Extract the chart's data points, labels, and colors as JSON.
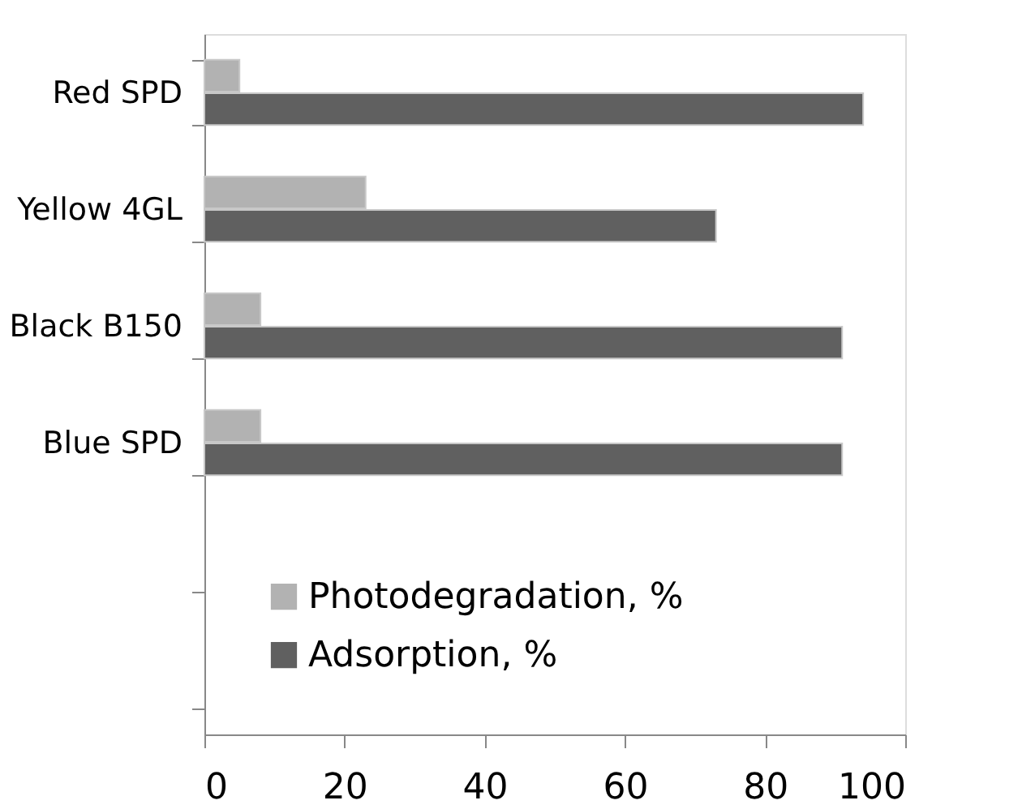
{
  "chart_data": {
    "type": "bar",
    "orientation": "horizontal",
    "categories": [
      "Red SPD",
      "Yellow 4GL",
      "Black B150",
      "Blue SPD",
      null,
      null
    ],
    "series": [
      {
        "name": "Photodegradation, %",
        "color": "#b2b2b2",
        "values": [
          5,
          23,
          8,
          8,
          null,
          null
        ]
      },
      {
        "name": "Adsorption, %",
        "color": "#606060",
        "values": [
          94,
          73,
          91,
          91,
          null,
          null
        ]
      }
    ],
    "xlim": [
      0,
      100
    ],
    "xticks": [
      0,
      20,
      40,
      60,
      80,
      100
    ],
    "grid": false,
    "legend": "bottom left"
  }
}
